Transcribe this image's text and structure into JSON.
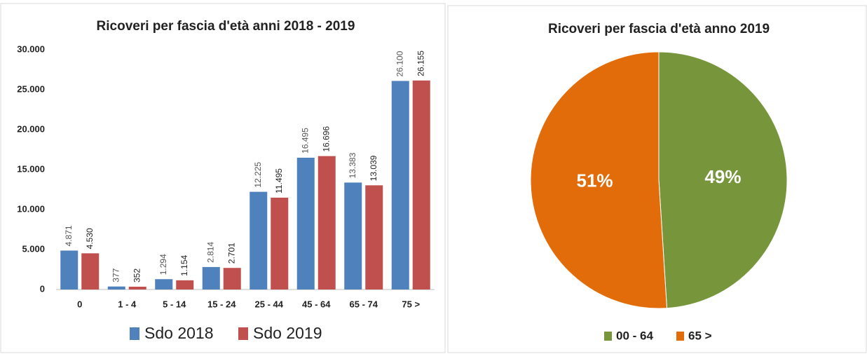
{
  "chart_data": [
    {
      "type": "bar",
      "title": "Ricoveri per fascia d'età anni 2018 - 2019",
      "categories": [
        "0",
        "1 - 4",
        "5 - 14",
        "15 - 24",
        "25 - 44",
        "45 - 64",
        "65 - 74",
        "75 >"
      ],
      "series": [
        {
          "name": "Sdo 2018",
          "color": "#4f81bd",
          "values": [
            4871,
            377,
            1294,
            2814,
            12225,
            16495,
            13383,
            26100
          ],
          "value_labels": [
            "4.871",
            "377",
            "1.294",
            "2.814",
            "12.225",
            "16.495",
            "13.383",
            "26.100"
          ]
        },
        {
          "name": "Sdo 2019",
          "color": "#c0504d",
          "values": [
            4530,
            352,
            1154,
            2701,
            11495,
            16696,
            13039,
            26155
          ],
          "value_labels": [
            "4.530",
            "352",
            "1.154",
            "2.701",
            "11.495",
            "16.696",
            "13.039",
            "26.155"
          ]
        }
      ],
      "ylim": [
        0,
        30000
      ],
      "yticks": [
        0,
        {
          "value": 5000,
          "label": "5.000"
        },
        {
          "value": 10000,
          "label": "10.000"
        },
        {
          "value": 15000,
          "label": "15.000"
        },
        {
          "value": 20000,
          "label": "20.000"
        },
        {
          "value": 25000,
          "label": "25.000"
        },
        {
          "value": 30000,
          "label": "30.000"
        }
      ],
      "grid": false,
      "legend": "bottom"
    },
    {
      "type": "pie",
      "title": "Ricoveri per fascia d'età anno 2019",
      "categories": [
        "00 - 64",
        "65 >"
      ],
      "values": [
        49,
        51
      ],
      "value_labels": [
        "49%",
        "51%"
      ],
      "colors": [
        "#77963b",
        "#e36c0a"
      ],
      "legend": "bottom"
    }
  ]
}
